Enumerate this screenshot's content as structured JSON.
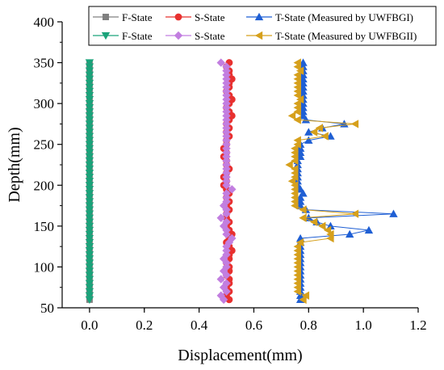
{
  "chart_data": {
    "type": "line",
    "title": "",
    "xlabel": "Displacement(mm)",
    "ylabel": "Depth(mm)",
    "xlim": [
      -0.1,
      1.2
    ],
    "ylim": [
      50,
      400
    ],
    "xticks": [
      "0.0",
      "0.2",
      "0.4",
      "0.6",
      "0.8",
      "1.0",
      "1.2"
    ],
    "yticks": [
      "50",
      "100",
      "150",
      "200",
      "250",
      "300",
      "350",
      "400"
    ],
    "grid": false,
    "legend_position": "top-right",
    "legend": [
      [
        "F-State",
        "S-State",
        "T-State (Measured by UWFBGI)"
      ],
      [
        "F-State",
        "S-State",
        "T-State (Measured by UWFBGII)"
      ]
    ],
    "depths": [
      60,
      65,
      70,
      75,
      80,
      85,
      90,
      95,
      100,
      105,
      110,
      115,
      120,
      125,
      130,
      135,
      140,
      145,
      150,
      155,
      160,
      165,
      170,
      175,
      180,
      185,
      190,
      195,
      200,
      205,
      210,
      215,
      220,
      225,
      230,
      235,
      240,
      245,
      250,
      255,
      260,
      265,
      270,
      275,
      280,
      285,
      290,
      295,
      300,
      305,
      310,
      315,
      320,
      325,
      330,
      335,
      340,
      345,
      350
    ],
    "series": [
      {
        "name": "F-State",
        "color": "#808080",
        "marker": "square",
        "y_ref": "depths",
        "x": [
          0.0,
          0.0,
          0.0,
          0.0,
          0.0,
          0.0,
          0.0,
          0.0,
          0.0,
          0.0,
          0.0,
          0.0,
          0.0,
          0.0,
          0.0,
          0.0,
          0.0,
          0.0,
          0.0,
          0.0,
          0.0,
          0.0,
          0.0,
          0.0,
          0.0,
          0.0,
          0.0,
          0.0,
          0.0,
          0.0,
          0.0,
          0.0,
          0.0,
          0.0,
          0.0,
          0.0,
          0.0,
          0.0,
          0.0,
          0.0,
          0.0,
          0.0,
          0.0,
          0.0,
          0.0,
          0.0,
          0.0,
          0.0,
          0.0,
          0.0,
          0.0,
          0.0,
          0.0,
          0.0,
          0.0,
          0.0,
          0.0,
          0.0,
          0.0
        ]
      },
      {
        "name": "S-State",
        "color": "#e8312f",
        "marker": "circle",
        "y_ref": "depths",
        "x": [
          0.51,
          0.5,
          0.51,
          0.5,
          0.51,
          0.51,
          0.5,
          0.51,
          0.51,
          0.5,
          0.51,
          0.51,
          0.52,
          0.51,
          0.5,
          0.51,
          0.52,
          0.51,
          0.5,
          0.51,
          0.5,
          0.5,
          0.51,
          0.5,
          0.51,
          0.5,
          0.51,
          0.5,
          0.49,
          0.5,
          0.49,
          0.5,
          0.51,
          0.5,
          0.5,
          0.49,
          0.5,
          0.49,
          0.5,
          0.5,
          0.51,
          0.5,
          0.51,
          0.5,
          0.51,
          0.52,
          0.51,
          0.5,
          0.51,
          0.52,
          0.51,
          0.5,
          0.51,
          0.51,
          0.52,
          0.51,
          0.51,
          0.5,
          0.51
        ]
      },
      {
        "name": "T-State (Measured by UWFBGI)",
        "color": "#1f5fd4",
        "marker": "triangle-up",
        "y_ref": "depths",
        "x": [
          0.77,
          0.77,
          0.77,
          0.77,
          0.77,
          0.77,
          0.77,
          0.77,
          0.77,
          0.77,
          0.77,
          0.77,
          0.77,
          0.77,
          0.77,
          0.77,
          0.95,
          1.02,
          0.88,
          0.83,
          0.8,
          1.11,
          0.79,
          0.77,
          0.77,
          0.77,
          0.78,
          0.77,
          0.76,
          0.76,
          0.76,
          0.76,
          0.76,
          0.76,
          0.76,
          0.77,
          0.77,
          0.77,
          0.77,
          0.8,
          0.88,
          0.8,
          0.85,
          0.93,
          0.79,
          0.78,
          0.78,
          0.78,
          0.78,
          0.78,
          0.78,
          0.78,
          0.78,
          0.78,
          0.78,
          0.78,
          0.78,
          0.78,
          0.78
        ]
      },
      {
        "name": "F-State",
        "color": "#1aa37a",
        "marker": "triangle-down",
        "y_ref": "depths",
        "x": [
          0.0,
          0.0,
          0.0,
          0.0,
          0.0,
          0.0,
          0.0,
          0.0,
          0.0,
          0.0,
          0.0,
          0.0,
          0.0,
          0.0,
          0.0,
          0.0,
          0.0,
          0.0,
          0.0,
          0.0,
          0.0,
          0.0,
          0.0,
          0.0,
          0.0,
          0.0,
          0.0,
          0.0,
          0.0,
          0.0,
          0.0,
          0.0,
          0.0,
          0.0,
          0.0,
          0.0,
          0.0,
          0.0,
          0.0,
          0.0,
          0.0,
          0.0,
          0.0,
          0.0,
          0.0,
          0.0,
          0.0,
          0.0,
          0.0,
          0.0,
          0.0,
          0.0,
          0.0,
          0.0,
          0.0,
          0.0,
          0.0,
          0.0,
          0.0
        ]
      },
      {
        "name": "S-State",
        "color": "#c27ee0",
        "marker": "diamond",
        "y_ref": "depths",
        "x": [
          0.49,
          0.48,
          0.5,
          0.49,
          0.5,
          0.48,
          0.5,
          0.49,
          0.5,
          0.5,
          0.49,
          0.5,
          0.5,
          0.5,
          0.51,
          0.52,
          0.5,
          0.5,
          0.49,
          0.5,
          0.48,
          0.5,
          0.5,
          0.49,
          0.5,
          0.5,
          0.5,
          0.52,
          0.5,
          0.5,
          0.5,
          0.5,
          0.5,
          0.5,
          0.5,
          0.5,
          0.5,
          0.5,
          0.5,
          0.5,
          0.5,
          0.5,
          0.5,
          0.5,
          0.5,
          0.5,
          0.5,
          0.5,
          0.5,
          0.5,
          0.5,
          0.5,
          0.5,
          0.5,
          0.5,
          0.5,
          0.5,
          0.5,
          0.48
        ]
      },
      {
        "name": "T-State (Measured by UWFBGII)",
        "color": "#d6a01c",
        "marker": "triangle-left",
        "y_ref": "depths",
        "x": [
          0.78,
          0.79,
          0.76,
          0.76,
          0.76,
          0.76,
          0.76,
          0.76,
          0.76,
          0.76,
          0.76,
          0.76,
          0.76,
          0.76,
          0.77,
          0.88,
          0.88,
          0.87,
          0.85,
          0.82,
          0.78,
          0.97,
          0.78,
          0.75,
          0.75,
          0.75,
          0.75,
          0.75,
          0.75,
          0.74,
          0.75,
          0.75,
          0.75,
          0.73,
          0.75,
          0.75,
          0.75,
          0.75,
          0.76,
          0.76,
          0.86,
          0.82,
          0.84,
          0.97,
          0.76,
          0.74,
          0.76,
          0.76,
          0.76,
          0.77,
          0.76,
          0.76,
          0.76,
          0.76,
          0.76,
          0.76,
          0.77,
          0.76,
          0.76
        ]
      }
    ]
  }
}
